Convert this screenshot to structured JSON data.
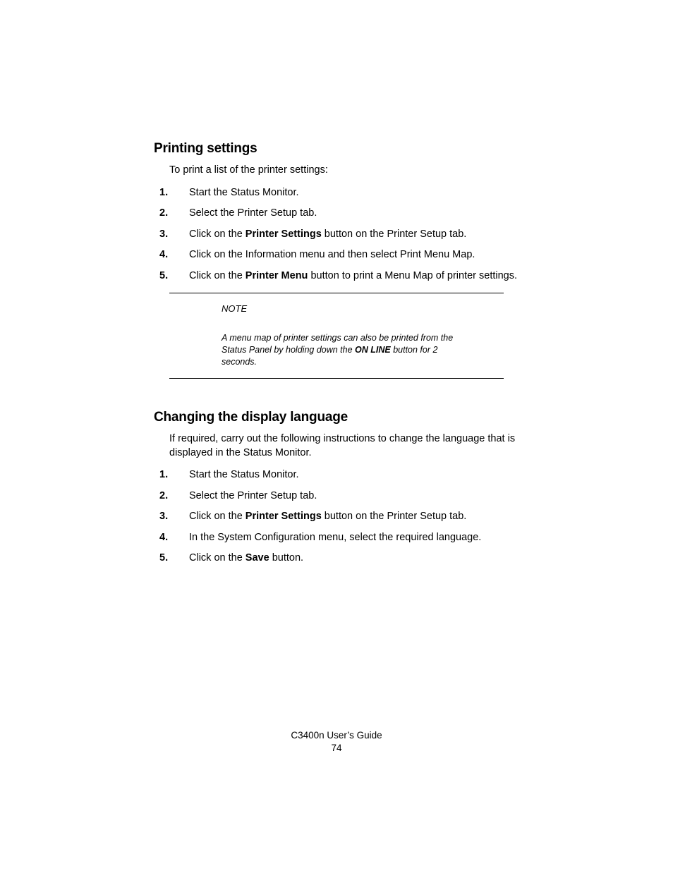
{
  "section1": {
    "heading": "Printing settings",
    "intro": "To print a list of the printer settings:",
    "steps": [
      [
        {
          "t": "Start the Status Monitor."
        }
      ],
      [
        {
          "t": "Select the Printer Setup tab."
        }
      ],
      [
        {
          "t": "Click on the "
        },
        {
          "t": "Printer Settings",
          "b": true
        },
        {
          "t": " button on the Printer Setup tab."
        }
      ],
      [
        {
          "t": "Click on the Information menu and then select Print Menu Map."
        }
      ],
      [
        {
          "t": "Click on the "
        },
        {
          "t": "Printer Menu",
          "b": true
        },
        {
          "t": " button to print a Menu Map of printer settings."
        }
      ]
    ]
  },
  "note": {
    "label": "NOTE",
    "body": [
      {
        "t": "A menu map of printer settings can also be printed from the Status Panel by holding down the "
      },
      {
        "t": "ON LINE",
        "b": true
      },
      {
        "t": " button for 2 seconds."
      }
    ]
  },
  "section2": {
    "heading": "Changing the display language",
    "intro": "If required, carry out the following instructions to change the language that is displayed in the Status Monitor.",
    "steps": [
      [
        {
          "t": "Start the Status Monitor."
        }
      ],
      [
        {
          "t": "Select the Printer Setup tab."
        }
      ],
      [
        {
          "t": "Click on the "
        },
        {
          "t": "Printer Settings",
          "b": true
        },
        {
          "t": " button on the Printer Setup tab."
        }
      ],
      [
        {
          "t": "In the System Configuration menu, select the required language."
        }
      ],
      [
        {
          "t": "Click on the "
        },
        {
          "t": "Save",
          "b": true
        },
        {
          "t": " button."
        }
      ]
    ]
  },
  "footer": {
    "title": "C3400n User’s Guide",
    "page": "74"
  }
}
